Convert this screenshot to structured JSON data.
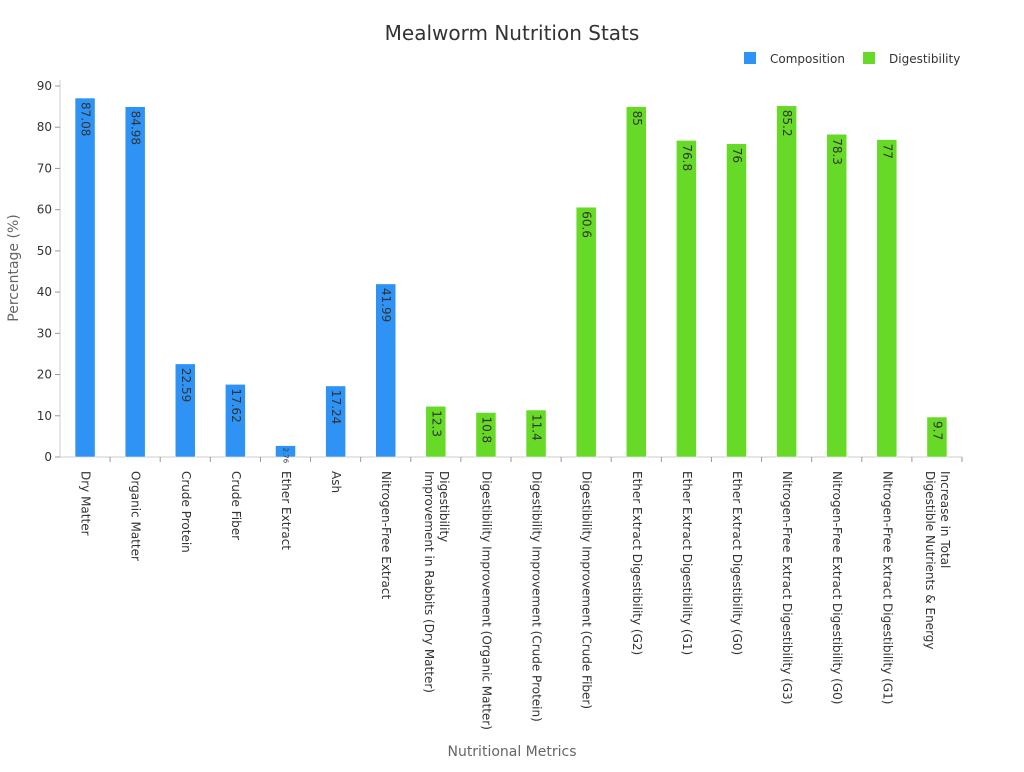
{
  "chart_data": {
    "type": "bar",
    "title": "Mealworm Nutrition Stats",
    "xlabel": "Nutritional Metrics",
    "ylabel": "Percentage (%)",
    "ylim": [
      0,
      90
    ],
    "yticks": [
      0,
      10,
      20,
      30,
      40,
      50,
      60,
      70,
      80,
      90
    ],
    "legend_position": "top-right",
    "grid": false,
    "categories": [
      "Dry Matter",
      "Organic Matter",
      "Crude Protein",
      "Crude Fiber",
      "Ether Extract",
      "Ash",
      "Nitrogen-Free Extract",
      "Digestibility Improvement in Rabbits (Dry Matter)",
      "Digestibility Improvement (Organic Matter)",
      "Digestibility Improvement (Crude Protein)",
      "Digestibility Improvement (Crude Fiber)",
      "Ether Extract Digestibility (G2)",
      "Ether Extract Digestibility (G1)",
      "Ether Extract Digestibility (G0)",
      "Nitrogen-Free Extract Digestibility (G3)",
      "Nitrogen-Free Extract Digestibility (G0)",
      "Nitrogen-Free Extract Digestibility (G1)",
      "Increase in Total Digestible Nutrients & Energy"
    ],
    "category_label_lines": [
      [
        "Dry Matter"
      ],
      [
        "Organic Matter"
      ],
      [
        "Crude Protein"
      ],
      [
        "Crude Fiber"
      ],
      [
        "Ether Extract"
      ],
      [
        "Ash"
      ],
      [
        "Nitrogen-Free Extract"
      ],
      [
        "Digestibility",
        "Improvement in Rabbits (Dry Matter)"
      ],
      [
        "Digestibility Improvement (Organic Matter)"
      ],
      [
        "Digestibility Improvement (Crude Protein)"
      ],
      [
        "Digestibility Improvement (Crude Fiber)"
      ],
      [
        "Ether Extract Digestibility (G2)"
      ],
      [
        "Ether Extract Digestibility (G1)"
      ],
      [
        "Ether Extract Digestibility (G0)"
      ],
      [
        "Nitrogen-Free Extract Digestibility (G3)"
      ],
      [
        "Nitrogen-Free Extract Digestibility (G0)"
      ],
      [
        "Nitrogen-Free Extract Digestibility (G1)"
      ],
      [
        "Increase in Total",
        "Digestible Nutrients & Energy"
      ]
    ],
    "series": [
      {
        "name": "Composition",
        "color": "#2e93f5",
        "values": [
          87.08,
          84.98,
          22.59,
          17.62,
          2.76,
          17.24,
          41.99,
          null,
          null,
          null,
          null,
          null,
          null,
          null,
          null,
          null,
          null,
          null
        ],
        "labels": [
          "87.08",
          "84.98",
          "22.59",
          "17.62",
          "2.76",
          "17.24",
          "41.99",
          null,
          null,
          null,
          null,
          null,
          null,
          null,
          null,
          null,
          null,
          null
        ]
      },
      {
        "name": "Digestibility",
        "color": "#66da26",
        "values": [
          null,
          null,
          null,
          null,
          null,
          null,
          null,
          12.3,
          10.8,
          11.4,
          60.6,
          85,
          76.8,
          76,
          85.2,
          78.3,
          77,
          9.7
        ],
        "labels": [
          null,
          null,
          null,
          null,
          null,
          null,
          null,
          "12.3",
          "10.8",
          "11.4",
          "60.6",
          "85",
          "76.8",
          "76",
          "85.2",
          "78.3",
          "77",
          "9.7"
        ]
      }
    ]
  }
}
